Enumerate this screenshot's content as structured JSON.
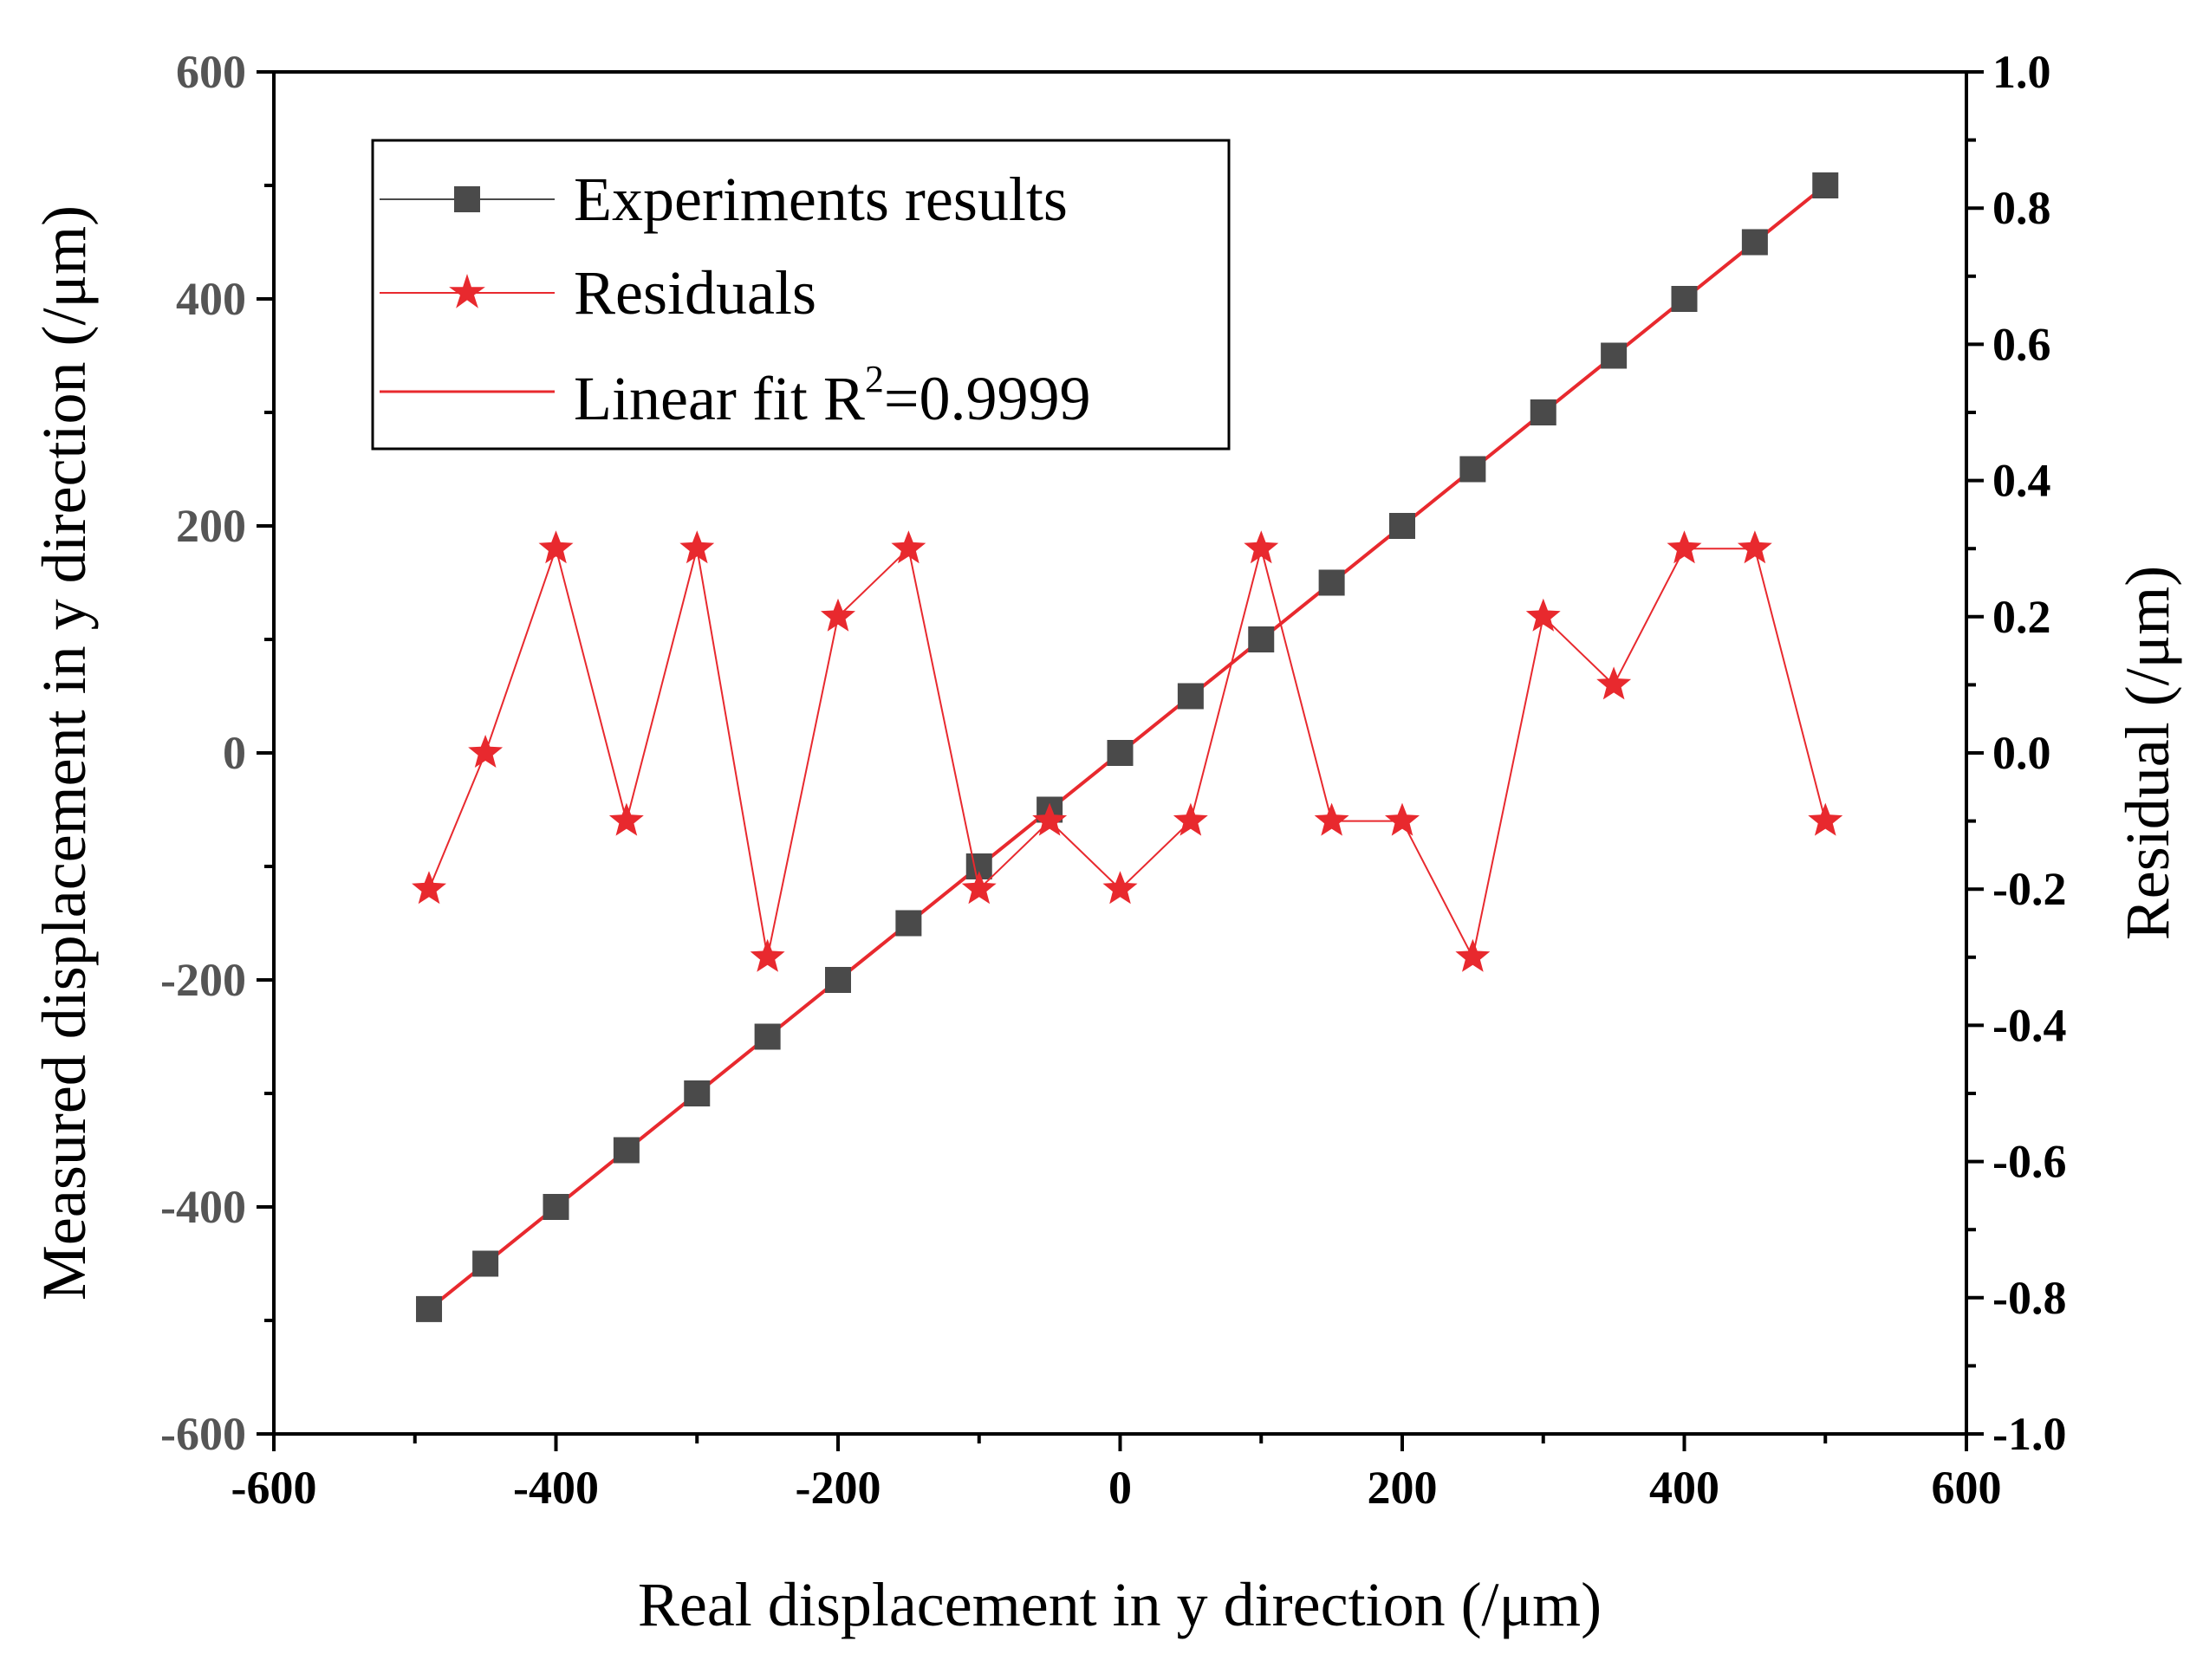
{
  "chart_data": {
    "type": "line",
    "title": "",
    "xlabel": "Real displacement in y direction (/μm)",
    "ylabel": "Measured displacement in y direction (/μm)",
    "y2label": "Residual (/μm)",
    "xlim": [
      -600,
      600
    ],
    "ylim": [
      -600,
      600
    ],
    "y2lim": [
      -1.0,
      1.0
    ],
    "x_ticks": [
      "-600",
      "-400",
      "-200",
      "0",
      "200",
      "400",
      "600"
    ],
    "y_ticks": [
      "-600",
      "-400",
      "-200",
      "0",
      "200",
      "400",
      "600"
    ],
    "y2_ticks": [
      "-1.0",
      "-0.8",
      "-0.6",
      "-0.4",
      "-0.2",
      "0.0",
      "0.2",
      "0.4",
      "0.6",
      "0.8",
      "1.0"
    ],
    "legend": {
      "position": "top-left",
      "entries": [
        "Experiments results",
        "Residuals",
        "Linear fit R",
        "=0.9999"
      ],
      "superscript": "2"
    },
    "series": [
      {
        "name": "Experiments results",
        "axis": "left",
        "color": "#4a4a4a",
        "marker": "square",
        "x": [
          -490,
          -450,
          -400,
          -350,
          -300,
          -250,
          -200,
          -150,
          -100,
          -50,
          0,
          50,
          100,
          150,
          200,
          250,
          300,
          350,
          400,
          450,
          500
        ],
        "y": [
          -490,
          -450,
          -400,
          -350,
          -300,
          -250,
          -200,
          -150,
          -100,
          -50,
          0,
          50,
          100,
          150,
          200,
          250,
          300,
          350,
          400,
          450,
          500
        ]
      },
      {
        "name": "Residuals",
        "axis": "right",
        "color": "#e8292e",
        "marker": "star",
        "x": [
          -490,
          -450,
          -400,
          -350,
          -300,
          -250,
          -200,
          -150,
          -100,
          -50,
          0,
          50,
          100,
          150,
          200,
          250,
          300,
          350,
          400,
          450,
          500
        ],
        "y": [
          -0.2,
          0.0,
          0.3,
          -0.1,
          0.3,
          -0.3,
          0.2,
          0.3,
          -0.2,
          -0.1,
          -0.2,
          -0.1,
          0.3,
          -0.1,
          -0.1,
          -0.3,
          0.2,
          0.1,
          0.3,
          0.3,
          -0.1
        ]
      },
      {
        "name": "Linear fit R2=0.9999",
        "axis": "left",
        "color": "#e8292e",
        "marker": "none",
        "x": [
          -490,
          500
        ],
        "y": [
          -490,
          500
        ]
      }
    ]
  }
}
